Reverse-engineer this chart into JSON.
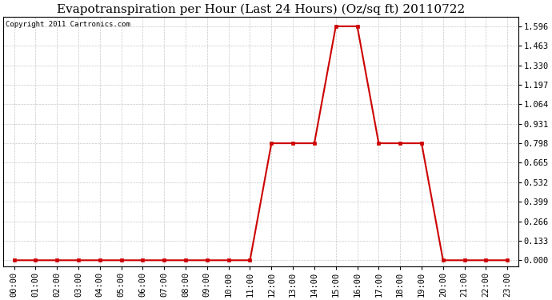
{
  "title": "Evapotranspiration per Hour (Last 24 Hours) (Oz/sq ft) 20110722",
  "copyright_text": "Copyright 2011 Cartronics.com",
  "hours": [
    0,
    1,
    2,
    3,
    4,
    5,
    6,
    7,
    8,
    9,
    10,
    11,
    12,
    13,
    14,
    15,
    16,
    17,
    18,
    19,
    20,
    21,
    22,
    23
  ],
  "values": [
    0.0,
    0.0,
    0.0,
    0.0,
    0.0,
    0.0,
    0.0,
    0.0,
    0.0,
    0.0,
    0.0,
    0.0,
    0.798,
    0.798,
    0.798,
    1.596,
    1.596,
    0.798,
    0.798,
    0.798,
    0.0,
    0.0,
    0.0,
    0.0
  ],
  "x_labels": [
    "00:00",
    "01:00",
    "02:00",
    "03:00",
    "04:00",
    "05:00",
    "06:00",
    "07:00",
    "08:00",
    "09:00",
    "10:00",
    "11:00",
    "12:00",
    "13:00",
    "14:00",
    "15:00",
    "16:00",
    "17:00",
    "18:00",
    "19:00",
    "20:00",
    "21:00",
    "22:00",
    "23:00"
  ],
  "y_ticks": [
    0.0,
    0.133,
    0.266,
    0.399,
    0.532,
    0.665,
    0.798,
    0.931,
    1.064,
    1.197,
    1.33,
    1.463,
    1.596
  ],
  "ylim_min": -0.04,
  "ylim_max": 1.66,
  "line_color": "#cc0000",
  "marker": "s",
  "marker_size": 2.5,
  "bg_color": "#ffffff",
  "plot_bg_color": "#ffffff",
  "grid_color": "#c8c8c8",
  "title_fontsize": 11,
  "copyright_fontsize": 6.5,
  "tick_fontsize": 7.5,
  "linewidth": 1.5
}
